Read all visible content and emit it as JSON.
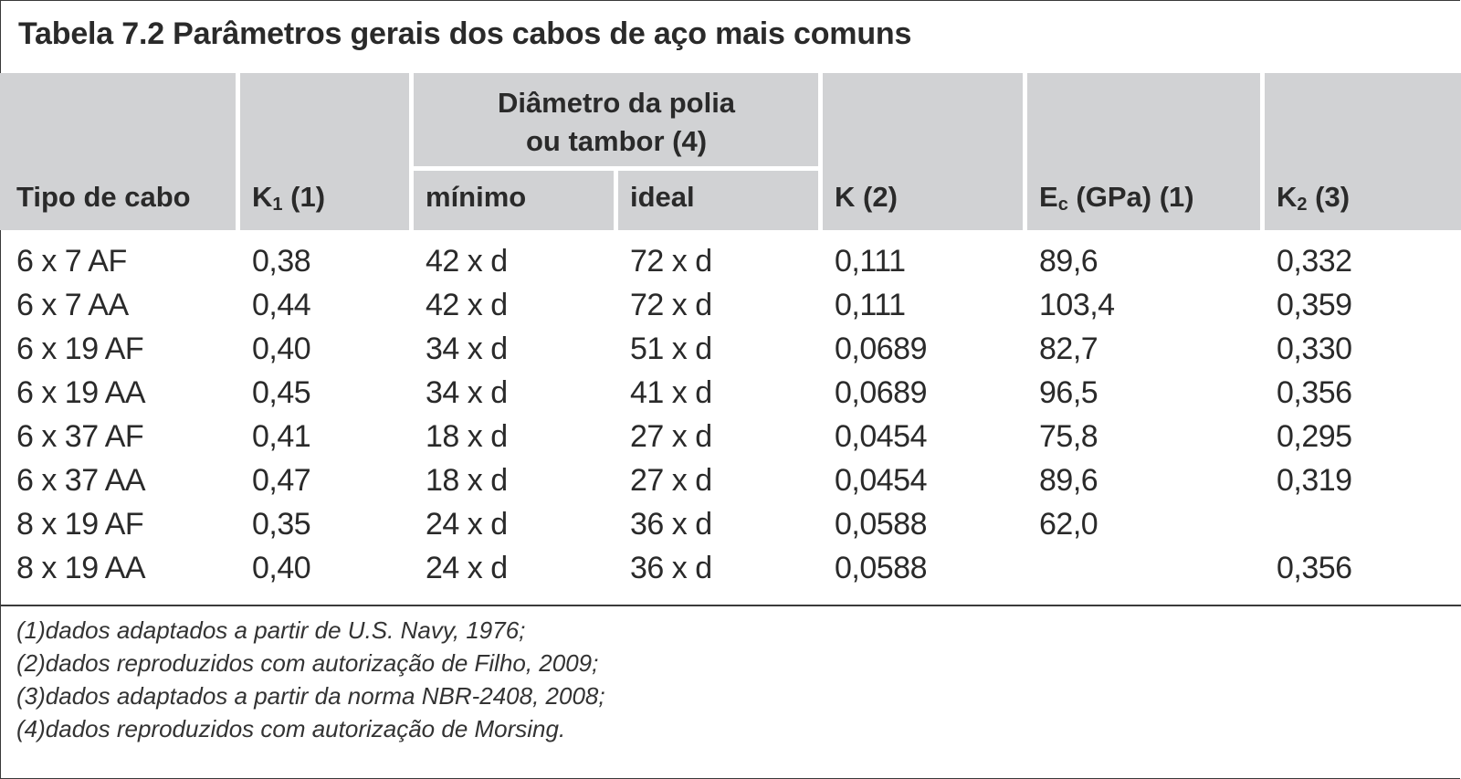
{
  "title": "Tabela 7.2  Parâmetros gerais dos cabos de aço mais comuns",
  "header": {
    "group_line1": "Diâmetro da polia",
    "group_line2": "ou tambor (4)",
    "col_tipo": "Tipo de cabo",
    "col_k1_main": "K",
    "col_k1_sub": "1",
    "col_k1_note": " (1)",
    "col_minimo": "mínimo",
    "col_ideal": "ideal",
    "col_k": "K (2)",
    "col_ec_main": "E",
    "col_ec_sub": "c",
    "col_ec_note": " (GPa) (1)",
    "col_k2_main": "K",
    "col_k2_sub": "2",
    "col_k2_note": " (3)"
  },
  "rows": [
    {
      "tipo": "6 x 7 AF",
      "k1": "0,38",
      "minimo": "42 x d",
      "ideal": "72 x d",
      "k": "0,111",
      "ec": "89,6",
      "k2": "0,332"
    },
    {
      "tipo": "6 x 7 AA",
      "k1": "0,44",
      "minimo": "42 x d",
      "ideal": "72 x d",
      "k": "0,111",
      "ec": "103,4",
      "k2": "0,359"
    },
    {
      "tipo": "6 x 19 AF",
      "k1": "0,40",
      "minimo": "34 x d",
      "ideal": "51 x d",
      "k": "0,0689",
      "ec": "82,7",
      "k2": "0,330"
    },
    {
      "tipo": "6 x 19 AA",
      "k1": "0,45",
      "minimo": "34 x d",
      "ideal": "41 x d",
      "k": "0,0689",
      "ec": "96,5",
      "k2": "0,356"
    },
    {
      "tipo": "6 x 37 AF",
      "k1": "0,41",
      "minimo": "18 x d",
      "ideal": "27 x d",
      "k": "0,0454",
      "ec": "75,8",
      "k2": "0,295"
    },
    {
      "tipo": "6 x 37 AA",
      "k1": "0,47",
      "minimo": "18 x d",
      "ideal": "27 x d",
      "k": "0,0454",
      "ec": "89,6",
      "k2": "0,319"
    },
    {
      "tipo": "8 x 19 AF",
      "k1": "0,35",
      "minimo": "24 x d",
      "ideal": "36 x d",
      "k": "0,0588",
      "ec": "62,0",
      "k2": ""
    },
    {
      "tipo": "8 x 19 AA",
      "k1": "0,40",
      "minimo": "24 x d",
      "ideal": "36 x d",
      "k": "0,0588",
      "ec": "",
      "k2": "0,356"
    }
  ],
  "notes": [
    "(1)dados adaptados a partir de U.S. Navy, 1976;",
    "(2)dados reproduzidos com autorização de Filho, 2009;",
    "(3)dados adaptados a partir da norma NBR-2408, 2008;",
    "(4)dados reproduzidos com autorização de Morsing."
  ]
}
